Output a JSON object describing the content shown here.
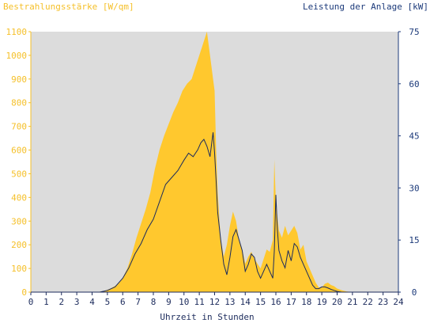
{
  "chart_data": {
    "type": "area",
    "left_axis_label": "Bestrahlungsstärke [W/qm]",
    "right_axis_label": "Leistung der Anlage [kW]",
    "xlabel": "Uhrzeit in Stunden",
    "xlim": [
      0,
      24
    ],
    "ylim_left": [
      0,
      1100
    ],
    "ylim_right": [
      0,
      75
    ],
    "x_ticks": [
      "0",
      "1",
      "2",
      "3",
      "4",
      "5",
      "6",
      "7",
      "8",
      "9",
      "10",
      "11",
      "12",
      "13",
      "14",
      "15",
      "16",
      "17",
      "18",
      "19",
      "20",
      "21",
      "22",
      "23",
      "24"
    ],
    "y_left_ticks": [
      "0",
      "100",
      "200",
      "300",
      "400",
      "500",
      "600",
      "700",
      "800",
      "900",
      "1000",
      "1100"
    ],
    "y_right_ticks": [
      "0",
      "15",
      "30",
      "45",
      "60",
      "75"
    ],
    "grid": false,
    "colors": {
      "irradiance_fill": "#ffc82e",
      "power_line": "#1c2b5c",
      "left_axis_text": "#f5c02a",
      "right_axis_text": "#1c3a7a",
      "plot_background": "#dcdcdc"
    },
    "series": [
      {
        "x": [
          0,
          4.3,
          4.8,
          5.2,
          5.6,
          6.0,
          6.3,
          6.6,
          6.9,
          7.2,
          7.5,
          7.8,
          8.1,
          8.4,
          8.7,
          9.0,
          9.3,
          9.6,
          9.9,
          10.2,
          10.5,
          10.8,
          11.0,
          11.2,
          11.4,
          11.5,
          11.6,
          11.7,
          11.8,
          11.9,
          12.0,
          12.1,
          12.2,
          12.4,
          12.6,
          12.8,
          13.0,
          13.2,
          13.4,
          13.6,
          13.8,
          14.0,
          14.2,
          14.4,
          14.6,
          14.8,
          15.0,
          15.2,
          15.4,
          15.6,
          15.8,
          15.9,
          16.0,
          16.1,
          16.2,
          16.4,
          16.6,
          16.8,
          17.0,
          17.2,
          17.4,
          17.6,
          17.8,
          18.0,
          18.2,
          18.4,
          18.6,
          18.8,
          19.0,
          19.2,
          19.4,
          19.6,
          19.8,
          20.0,
          20.3,
          20.6,
          21,
          24
        ],
        "values": [
          0,
          0,
          5,
          15,
          30,
          60,
          100,
          160,
          230,
          290,
          350,
          420,
          520,
          600,
          660,
          710,
          760,
          800,
          850,
          880,
          900,
          960,
          1000,
          1040,
          1080,
          1100,
          1050,
          1000,
          950,
          900,
          850,
          600,
          420,
          220,
          150,
          200,
          280,
          340,
          300,
          220,
          180,
          120,
          150,
          170,
          140,
          120,
          100,
          140,
          180,
          170,
          220,
          560,
          380,
          320,
          260,
          230,
          280,
          240,
          260,
          280,
          250,
          180,
          200,
          130,
          100,
          70,
          40,
          20,
          20,
          35,
          40,
          30,
          25,
          15,
          8,
          3,
          0,
          0
        ]
      },
      {
        "x": [
          0,
          4.5,
          5.0,
          5.5,
          6.0,
          6.4,
          6.8,
          7.2,
          7.6,
          8.0,
          8.4,
          8.8,
          9.2,
          9.6,
          10.0,
          10.3,
          10.6,
          10.9,
          11.1,
          11.3,
          11.5,
          11.7,
          11.9,
          12.0,
          12.1,
          12.2,
          12.4,
          12.6,
          12.8,
          13.0,
          13.2,
          13.4,
          13.6,
          13.8,
          14.0,
          14.2,
          14.4,
          14.6,
          14.8,
          15.0,
          15.2,
          15.4,
          15.6,
          15.8,
          15.9,
          16.0,
          16.1,
          16.2,
          16.4,
          16.6,
          16.8,
          17.0,
          17.2,
          17.4,
          17.6,
          17.8,
          18.0,
          18.2,
          18.4,
          18.6,
          18.8,
          19.0,
          19.2,
          19.4,
          19.6,
          19.8,
          20.0,
          20.3,
          21,
          24
        ],
        "values": [
          0,
          0,
          0.5,
          1.5,
          4,
          7,
          11,
          14,
          18,
          21,
          26,
          31,
          33,
          35,
          38,
          40,
          39,
          41,
          43,
          44,
          42,
          39,
          46,
          40,
          32,
          23,
          15,
          8,
          5,
          10,
          16,
          18,
          15,
          12,
          6,
          8,
          11,
          10,
          6,
          4,
          6,
          8,
          6,
          4,
          12,
          28,
          18,
          12,
          9,
          7,
          12,
          9,
          14,
          13,
          10,
          8,
          6,
          4,
          2,
          1,
          1,
          1.5,
          1.5,
          1.2,
          0.8,
          0.5,
          0.2,
          0,
          0,
          0
        ]
      }
    ]
  }
}
